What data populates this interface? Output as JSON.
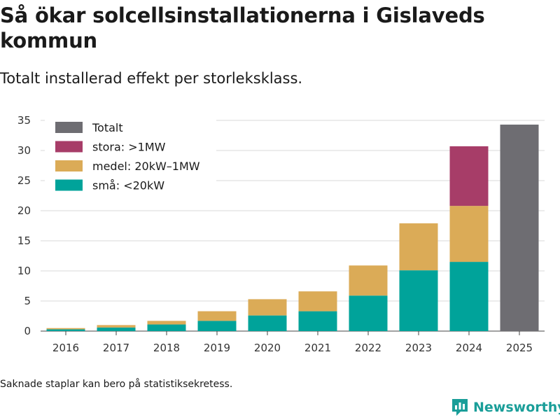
{
  "title": "Så ökar solcellsinstallationerna i Gislaveds kommun",
  "subtitle": "Totalt installerad effekt per storleksklass.",
  "footnote": "Saknade staplar kan bero på statistiksekretess.",
  "brand": {
    "name": "Newsworthy",
    "color": "#1a9e99"
  },
  "chart_data": {
    "type": "bar",
    "stacked": true,
    "categories": [
      "2016",
      "2017",
      "2018",
      "2019",
      "2020",
      "2021",
      "2022",
      "2023",
      "2024",
      "2025"
    ],
    "ylim": [
      0,
      35
    ],
    "yticks": [
      0,
      5,
      10,
      15,
      20,
      25,
      30,
      35
    ],
    "xlabel": "",
    "ylabel": "",
    "grid": true,
    "legend_position": "top-left",
    "series": [
      {
        "name": "små: <20kW",
        "color": "#00a39a",
        "values": [
          0.3,
          0.6,
          1.1,
          1.7,
          2.6,
          3.3,
          5.9,
          10.1,
          11.5,
          null
        ]
      },
      {
        "name": "medel: 20kW–1MW",
        "color": "#dbab57",
        "values": [
          0.2,
          0.4,
          0.6,
          1.6,
          2.7,
          3.3,
          5.0,
          7.8,
          9.3,
          null
        ]
      },
      {
        "name": "stora: >1MW",
        "color": "#a73d68",
        "values": [
          null,
          null,
          null,
          null,
          null,
          null,
          null,
          null,
          9.9,
          null
        ]
      },
      {
        "name": "Totalt",
        "color": "#6e6d72",
        "values": [
          null,
          null,
          null,
          null,
          null,
          null,
          null,
          null,
          null,
          34.3
        ]
      }
    ],
    "legend_order": [
      "Totalt",
      "stora: >1MW",
      "medel: 20kW–1MW",
      "små: <20kW"
    ]
  }
}
